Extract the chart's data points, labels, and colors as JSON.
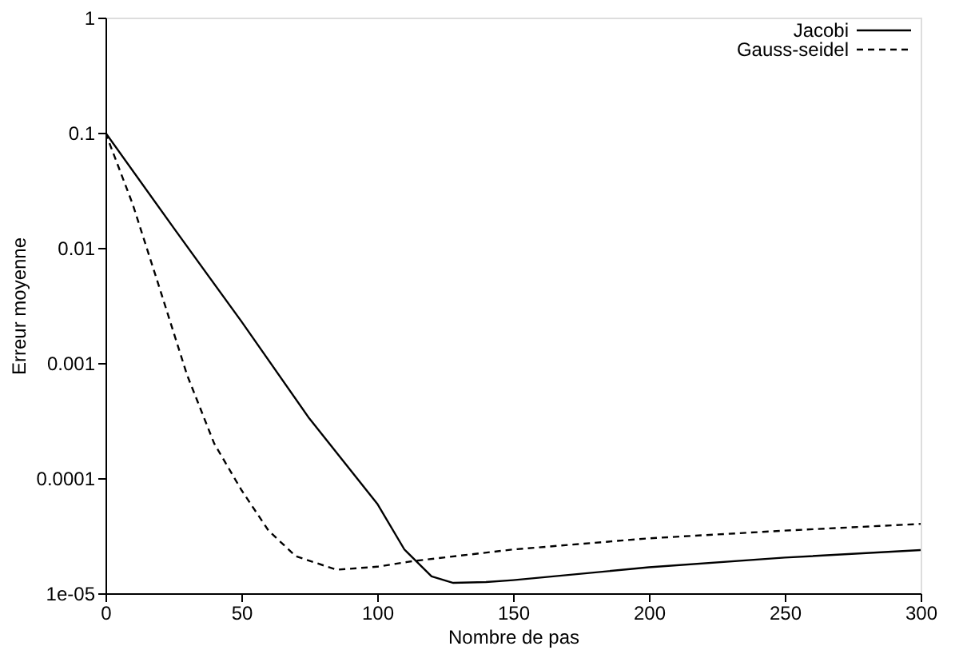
{
  "chart_data": {
    "type": "line",
    "xlabel": "Nombre de pas",
    "ylabel": "Erreur moyenne",
    "log": "y",
    "xlim": [
      0,
      300
    ],
    "xticks": [
      0,
      50,
      100,
      150,
      200,
      250,
      300
    ],
    "ylim": [
      1e-05,
      1
    ],
    "yticks": [
      1,
      0.1,
      0.01,
      0.001,
      0.0001,
      {
        "value": 1e-05,
        "label": "1e-05"
      }
    ],
    "grid": false,
    "legend": "top right",
    "marker": "none",
    "series": [
      {
        "name": "Jacobi",
        "color": "#000000",
        "line_style": "solid",
        "x": [
          0,
          25,
          50,
          75,
          100,
          110,
          120,
          128,
          140,
          150,
          200,
          250,
          300
        ],
        "values": [
          0.1,
          0.015,
          0.0023,
          0.00033,
          6e-05,
          2.4e-05,
          1.4e-05,
          1.23e-05,
          1.25e-05,
          1.3e-05,
          1.68e-05,
          2.04e-05,
          2.37e-05
        ]
      },
      {
        "name": "Gauss-seidel",
        "color": "#000000",
        "line_style": "dashed",
        "x": [
          0,
          10,
          20,
          30,
          40,
          50,
          60,
          70,
          85,
          100,
          113,
          150,
          200,
          250,
          300
        ],
        "values": [
          0.1,
          0.024,
          0.0044,
          0.00079,
          0.0002,
          7.9e-05,
          3.5e-05,
          2.1e-05,
          1.6e-05,
          1.7e-05,
          1.9e-05,
          2.4e-05,
          3e-05,
          3.5e-05,
          4e-05
        ]
      }
    ]
  }
}
